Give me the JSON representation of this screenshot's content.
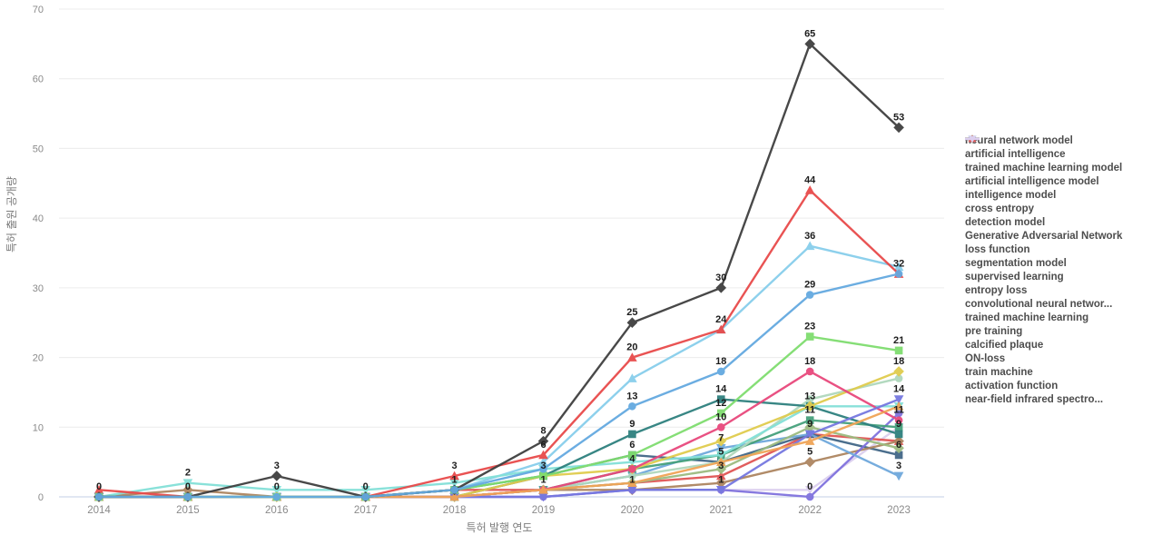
{
  "page": {
    "background": "#ffffff"
  },
  "axes": {
    "x_title": "특허 발행 연도",
    "y_title": "특허 출원 공개량",
    "y_ticks": [
      0,
      10,
      20,
      30,
      40,
      50,
      60,
      70
    ],
    "x_ticks": [
      "2014",
      "2015",
      "2016",
      "2017",
      "2018",
      "2019",
      "2020",
      "2021",
      "2022",
      "2023"
    ]
  },
  "chart_data": {
    "type": "line",
    "title": "",
    "xlabel": "특허 발행 연도",
    "ylabel": "특허 출원 공개량",
    "x": [
      2014,
      2015,
      2016,
      2017,
      2018,
      2019,
      2020,
      2021,
      2022,
      2023
    ],
    "ylim": [
      0,
      70
    ],
    "yticks": [
      0,
      10,
      20,
      30,
      40,
      50,
      60,
      70
    ],
    "grid": true,
    "legend_position": "right",
    "series": [
      {
        "name": "neural network model",
        "color": "#64a9e0",
        "marker": "circle",
        "values": [
          0,
          0,
          0,
          0,
          1,
          4,
          13,
          18,
          29,
          32
        ]
      },
      {
        "name": "artificial intelligence",
        "color": "#3f3f3f",
        "marker": "diamond",
        "values": [
          0,
          0,
          3,
          0,
          1,
          8,
          25,
          30,
          65,
          53
        ]
      },
      {
        "name": "trained machine learning model",
        "color": "#7fdd6f",
        "marker": "square",
        "values": [
          0,
          0,
          0,
          0,
          1,
          3,
          6,
          12,
          23,
          21
        ]
      },
      {
        "name": "artificial intelligence model",
        "color": "#f0a456",
        "marker": "triangle-up",
        "values": [
          0,
          0,
          0,
          0,
          0,
          1,
          2,
          5,
          8,
          13
        ]
      },
      {
        "name": "intelligence model",
        "color": "#7678e0",
        "marker": "triangle-down",
        "values": [
          0,
          0,
          0,
          0,
          0,
          0,
          1,
          1,
          9,
          14
        ]
      },
      {
        "name": "cross entropy",
        "color": "#e8487c",
        "marker": "circle",
        "values": [
          0,
          0,
          0,
          0,
          0,
          1,
          4,
          10,
          18,
          11
        ]
      },
      {
        "name": "detection model",
        "color": "#e0cc4e",
        "marker": "diamond",
        "values": [
          0,
          0,
          0,
          0,
          0,
          3,
          4,
          8,
          13,
          18
        ]
      },
      {
        "name": "Generative Adversarial Network",
        "color": "#2e807e",
        "marker": "square",
        "values": [
          0,
          0,
          0,
          0,
          1,
          3,
          9,
          14,
          13,
          9
        ]
      },
      {
        "name": "loss function",
        "color": "#e84a4a",
        "marker": "triangle-up",
        "values": [
          1,
          0,
          0,
          0,
          3,
          6,
          20,
          24,
          44,
          32
        ]
      },
      {
        "name": "segmentation model",
        "color": "#83e0d8",
        "marker": "triangle-down",
        "values": [
          0,
          2,
          1,
          1,
          2,
          4,
          5,
          6,
          13,
          13
        ]
      },
      {
        "name": "supervised learning",
        "color": "#afd8bc",
        "marker": "circle",
        "values": [
          0,
          0,
          0,
          0,
          0,
          1,
          3,
          5,
          14,
          17
        ]
      },
      {
        "name": "entropy loss",
        "color": "#9cbb80",
        "marker": "diamond",
        "values": [
          0,
          0,
          0,
          0,
          0,
          1,
          2,
          4,
          10,
          7
        ]
      },
      {
        "name": "convolutional neural networ...",
        "color": "#46a17c",
        "marker": "square",
        "values": [
          0,
          0,
          0,
          0,
          0,
          1,
          4,
          6,
          11,
          10
        ]
      },
      {
        "name": "trained machine learning",
        "color": "#87ceeb",
        "marker": "triangle-up",
        "values": [
          0,
          0,
          0,
          0,
          1,
          5,
          17,
          24,
          36,
          33
        ]
      },
      {
        "name": "pre training",
        "color": "#6fa8dc",
        "marker": "triangle-down",
        "values": [
          0,
          0,
          0,
          0,
          0,
          1,
          3,
          7,
          9,
          3
        ]
      },
      {
        "name": "calcified plaque",
        "color": "#8072de",
        "marker": "circle",
        "values": [
          0,
          0,
          0,
          0,
          0,
          0,
          1,
          1,
          0,
          12
        ]
      },
      {
        "name": "ON-loss",
        "color": "#ad8560",
        "marker": "diamond",
        "values": [
          0,
          1,
          0,
          0,
          0,
          1,
          1,
          2,
          5,
          8
        ]
      },
      {
        "name": "train machine",
        "color": "#426787",
        "marker": "square",
        "values": [
          0,
          0,
          0,
          0,
          0,
          3,
          6,
          5,
          9,
          6
        ]
      },
      {
        "name": "activation function",
        "color": "#e05555",
        "marker": "triangle-up",
        "values": [
          0,
          0,
          0,
          0,
          1,
          1,
          2,
          3,
          9,
          8
        ]
      },
      {
        "name": "near-field infrared spectro...",
        "color": "#dccfef",
        "marker": "triangle-down",
        "values": [
          0,
          0,
          0,
          0,
          0,
          0,
          1,
          1,
          1,
          10
        ]
      }
    ],
    "value_labels": [
      {
        "year": 2014,
        "values": [
          0
        ]
      },
      {
        "year": 2015,
        "values": [
          2,
          0
        ]
      },
      {
        "year": 2016,
        "values": [
          3,
          0
        ]
      },
      {
        "year": 2017,
        "values": [
          0
        ]
      },
      {
        "year": 2018,
        "values": [
          3,
          1
        ]
      },
      {
        "year": 2019,
        "values": [
          8,
          6,
          3,
          1
        ]
      },
      {
        "year": 2020,
        "values": [
          25,
          20,
          13,
          9,
          6,
          4,
          1
        ]
      },
      {
        "year": 2021,
        "values": [
          30,
          24,
          18,
          14,
          12,
          10,
          7,
          5,
          3,
          1
        ]
      },
      {
        "year": 2022,
        "values": [
          65,
          44,
          36,
          29,
          23,
          18,
          13,
          11,
          9,
          5,
          0
        ]
      },
      {
        "year": 2023,
        "values": [
          53,
          32,
          21,
          18,
          14,
          11,
          9,
          6,
          3
        ]
      }
    ],
    "colors": {
      "gridline": "#ececec",
      "baseline": "#c3cfe6",
      "tick_text": "#8a8a8a",
      "value_label_text": "#1c1c1c"
    }
  }
}
